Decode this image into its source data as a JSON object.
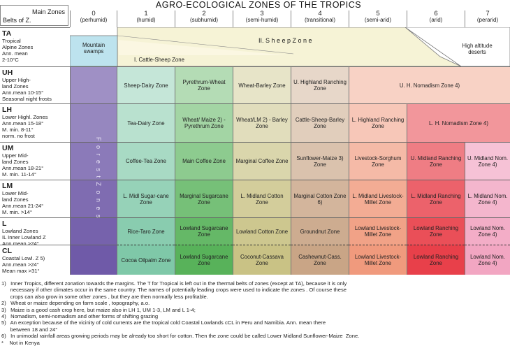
{
  "title": "AGRO-ECOLOGICAL ZONES OF THE TROPICS",
  "header": {
    "main_zones": "Main Zones",
    "belts_of_z": "Belts of Z."
  },
  "columns": [
    {
      "num": "0",
      "label": "(perhumid)"
    },
    {
      "num": "1",
      "label": "(humid)"
    },
    {
      "num": "2",
      "label": "(subhumid)"
    },
    {
      "num": "3",
      "label": "(semi-humid)"
    },
    {
      "num": "4",
      "label": "(transitional)"
    },
    {
      "num": "5",
      "label": "(semi-arid)"
    },
    {
      "num": "6",
      "label": "(arid)"
    },
    {
      "num": "7",
      "label": "(perarid)"
    }
  ],
  "rows": [
    {
      "code": "TA",
      "lines": [
        "Tropical",
        "Alpine Zones",
        "Ann. mean",
        "2-10°C"
      ]
    },
    {
      "code": "UH",
      "lines": [
        "Upper High-",
        "land Zones",
        "Ann.mean 10-15°",
        "Seasonal night frosts"
      ]
    },
    {
      "code": "LH",
      "lines": [
        "Lower Highl. Zones",
        "Ann.mean 15-18°",
        "M. min. 8-11°",
        "norm. no frost"
      ]
    },
    {
      "code": "UM",
      "lines": [
        "Upper Mid-",
        "land Zones",
        "Ann.mean 18-21°",
        "M. min. 11-14°"
      ]
    },
    {
      "code": "LM",
      "lines": [
        "Lower Mid-",
        "land Zones",
        "Ann.mean 21-24°",
        "M. min. >14°"
      ]
    },
    {
      "code": "L",
      "lines": [
        "Lowland Zones",
        "IL  Inner Lowland Z",
        "Ann.mean >24°",
        "Mean max <31°"
      ]
    },
    {
      "code": "CL",
      "lines": [
        "Coastal Lowl. Z 5)",
        "",
        "Ann.mean >24°",
        "Mean max >31°"
      ]
    }
  ],
  "ta_row": {
    "mountain_swamps": "Mountain swamps",
    "sheep_zone": "II. S h e e p   Z o n e",
    "cattle_sheep_zone": "I. Cattle-Sheep Zone",
    "high_altitude_deserts": "High altitude deserts"
  },
  "left_band": {
    "text": "F o r e s t   Z o n e s"
  },
  "cells": {
    "UH": [
      "Sheep-Dairy Zone",
      "Pyrethrum-Wheat Zone",
      "Wheat-Barley Zone",
      "U. Highland Ranching Zone",
      "U. H. Nomadism Zone 4)"
    ],
    "LH": [
      "Tea-Dairy Zone",
      "Wheat/ Maize 2) - Pyrethrum Zone",
      "Wheat/LM 2) - Barley Zone",
      "Cattle-Sheep-Barley Zone",
      "L. Highland Ranching Zone",
      "L. H. Nomadism Zone 4)"
    ],
    "UM": [
      "Coffee-Tea Zone",
      "Main Coffee Zone",
      "Marginal Coffee Zone",
      "Sunflower-Maize 3) Zone",
      "Livestock-Sorghum Zone",
      "U. Midland Ranching Zone",
      "U. Midland Nom. Zone 4)"
    ],
    "LM": [
      "L. Midl Sugar-cane Zone",
      "Marginal Sugarcane Zone",
      "L. Midland Cotton Zone",
      "Marginal Cotton Zone 6)",
      "L. Midland Livestock-Millet Zone",
      "L. Midland Ranching Zone",
      "L. Midland Nom. Zone 4)"
    ],
    "IL": [
      "Rice-Taro Zone",
      "Lowland Sugarcane Zone",
      "Lowland Cotton Zone",
      "Groundnut Zone",
      "Lowland Livestock-Millet Zone",
      "Lowland Ranching Zone",
      "Lowland Nom. Zone 4)"
    ],
    "CL": [
      "Cocoa Oilpalm Zone",
      "Lowland Sugarcane Zone",
      "Coconut-Cassava Zone",
      "Cashewnut-Cass. Zone",
      "Lowland Livestock-Millet Zone",
      "Lowland Ranching Zone",
      "Lowland Nom. Zone 4)"
    ]
  },
  "colors": {
    "forest": "#6f5aa8",
    "col1": "#7fc8a8",
    "col2": "#58b25a",
    "col3": "#c9c285",
    "col4": "#c9a586",
    "col5": "#f09a7d",
    "col6": "#e8404a",
    "col7": "#f2a6c2"
  },
  "notes": [
    "1)   Inner Tropics, different zonation towards the margins. The T for Tropical is left out in the thermal belts of zones (except at TA), because it is only",
    "      necessary if other climates occur in the same country. The names of potentially leading crops were used to indicate the zones . Of course these",
    "      crops can also grow in some other zones , but they are then normally less profitable.",
    "2)   Wheat or maize depending on farm scale , topography, a.o.",
    "3)   Maize is a good cash crop here, but maize also in LH 1, UM 1-3, LM and L 1-4;",
    "4)   Nomadism, semi-nomadism and other forms of shifting grazing",
    "5)   An exception because of the vicinity of cold currents are the tropical cold Coastal Lowlands cCL in Peru and Namibia. Ann. mean there",
    "      between 18 and 24°",
    "6)   In unimodal rainfall areas growing periods may be already too short for cotton. Then the zone could be called Lower Midland Sunflower-Maize  Zone.",
    "*    Not in Kenya"
  ]
}
